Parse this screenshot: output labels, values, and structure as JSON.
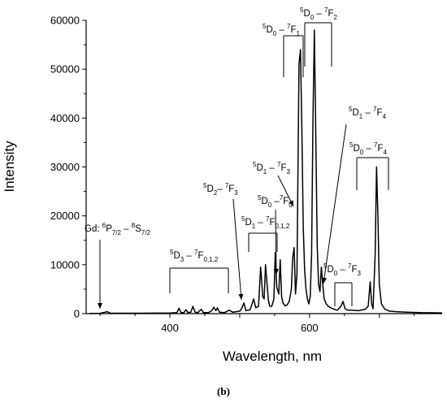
{
  "caption": "(b)",
  "chart_data": {
    "type": "line",
    "title": "",
    "xlabel": "Wavelength, nm",
    "ylabel": "Intensity",
    "xlim": [
      280,
      790
    ],
    "ylim": [
      0,
      60000
    ],
    "x_ticks": [
      400,
      500,
      600,
      700
    ],
    "y_ticks": [
      0,
      10000,
      20000,
      30000,
      40000,
      50000,
      60000
    ],
    "x_tick_labels": [
      "400",
      "600"
    ],
    "y_tick_labels": [
      "0",
      "10000",
      "20000",
      "30000",
      "40000",
      "50000",
      "60000"
    ],
    "grid": false,
    "legend": "none",
    "series": [
      {
        "color": "#000000",
        "points": [
          [
            285,
            50
          ],
          [
            300,
            60
          ],
          [
            310,
            400
          ],
          [
            315,
            80
          ],
          [
            330,
            80
          ],
          [
            350,
            90
          ],
          [
            380,
            100
          ],
          [
            400,
            110
          ],
          [
            410,
            200
          ],
          [
            413,
            1100
          ],
          [
            416,
            200
          ],
          [
            420,
            200
          ],
          [
            423,
            800
          ],
          [
            426,
            200
          ],
          [
            430,
            300
          ],
          [
            433,
            1500
          ],
          [
            436,
            300
          ],
          [
            440,
            200
          ],
          [
            445,
            900
          ],
          [
            448,
            200
          ],
          [
            455,
            200
          ],
          [
            460,
            600
          ],
          [
            463,
            1300
          ],
          [
            466,
            600
          ],
          [
            468,
            1200
          ],
          [
            471,
            300
          ],
          [
            478,
            200
          ],
          [
            485,
            700
          ],
          [
            490,
            300
          ],
          [
            500,
            500
          ],
          [
            503,
            1100
          ],
          [
            506,
            2200
          ],
          [
            509,
            600
          ],
          [
            515,
            800
          ],
          [
            520,
            3000
          ],
          [
            523,
            1200
          ],
          [
            527,
            1500
          ],
          [
            530,
            9500
          ],
          [
            533,
            3500
          ],
          [
            535,
            3000
          ],
          [
            537,
            10000
          ],
          [
            539,
            6500
          ],
          [
            541,
            2800
          ],
          [
            543,
            1500
          ],
          [
            546,
            1500
          ],
          [
            549,
            3000
          ],
          [
            551,
            12500
          ],
          [
            553,
            5500
          ],
          [
            556,
            4000
          ],
          [
            558,
            11000
          ],
          [
            560,
            3500
          ],
          [
            562,
            2200
          ],
          [
            565,
            1600
          ],
          [
            568,
            1800
          ],
          [
            571,
            2500
          ],
          [
            574,
            5000
          ],
          [
            576,
            11500
          ],
          [
            578,
            13500
          ],
          [
            580,
            4000
          ],
          [
            582,
            8000
          ],
          [
            585,
            51000
          ],
          [
            587,
            54000
          ],
          [
            589,
            38000
          ],
          [
            591,
            18000
          ],
          [
            593,
            9000
          ],
          [
            595,
            5000
          ],
          [
            597,
            3000
          ],
          [
            599,
            2000
          ],
          [
            601,
            3500
          ],
          [
            603,
            12000
          ],
          [
            605,
            40000
          ],
          [
            607,
            58000
          ],
          [
            609,
            36000
          ],
          [
            611,
            14000
          ],
          [
            613,
            6000
          ],
          [
            615,
            4500
          ],
          [
            617,
            9500
          ],
          [
            619,
            6000
          ],
          [
            621,
            3000
          ],
          [
            624,
            2000
          ],
          [
            627,
            1500
          ],
          [
            630,
            1200
          ],
          [
            635,
            900
          ],
          [
            640,
            700
          ],
          [
            645,
            1500
          ],
          [
            648,
            2500
          ],
          [
            651,
            1000
          ],
          [
            655,
            700
          ],
          [
            660,
            700
          ],
          [
            670,
            600
          ],
          [
            680,
            900
          ],
          [
            684,
            1500
          ],
          [
            687,
            6500
          ],
          [
            689,
            2000
          ],
          [
            691,
            1000
          ],
          [
            694,
            12000
          ],
          [
            696,
            30000
          ],
          [
            698,
            20000
          ],
          [
            700,
            6000
          ],
          [
            703,
            2000
          ],
          [
            708,
            900
          ],
          [
            715,
            500
          ],
          [
            725,
            400
          ],
          [
            740,
            300
          ],
          [
            760,
            200
          ],
          [
            790,
            150
          ]
        ]
      }
    ],
    "annotations": [
      {
        "main": "Gd: ",
        "parts": [
          "6",
          "P",
          "7/2",
          " – ",
          "8",
          "S",
          "7/2"
        ]
      },
      {
        "parts": [
          "5",
          "D",
          "3",
          " – ",
          "7",
          "F",
          "0,1,2"
        ]
      },
      {
        "parts": [
          "5",
          "D",
          "2",
          "– ",
          "7",
          "F",
          "3"
        ]
      },
      {
        "parts": [
          "5",
          "D",
          "1",
          " – ",
          "7",
          "F",
          "0,1,2"
        ]
      },
      {
        "parts": [
          "5",
          "D",
          "0",
          " –",
          "7",
          "F",
          "0"
        ]
      },
      {
        "parts": [
          "5",
          "D",
          "1",
          " – ",
          "7",
          "F",
          "3"
        ]
      },
      {
        "parts": [
          "5",
          "D",
          "0",
          " – ",
          "7",
          "F",
          "1"
        ]
      },
      {
        "parts": [
          "5",
          "D",
          "0",
          " – ",
          "7",
          "F",
          "2"
        ]
      },
      {
        "parts": [
          "5",
          "D",
          "1",
          " – ",
          "7",
          "F",
          "4"
        ]
      },
      {
        "parts": [
          "5",
          "D",
          "0",
          " – ",
          "7",
          "F",
          "4"
        ]
      },
      {
        "parts": [
          "5",
          "D",
          "0",
          " – ",
          "7",
          "F",
          "3"
        ]
      }
    ]
  }
}
